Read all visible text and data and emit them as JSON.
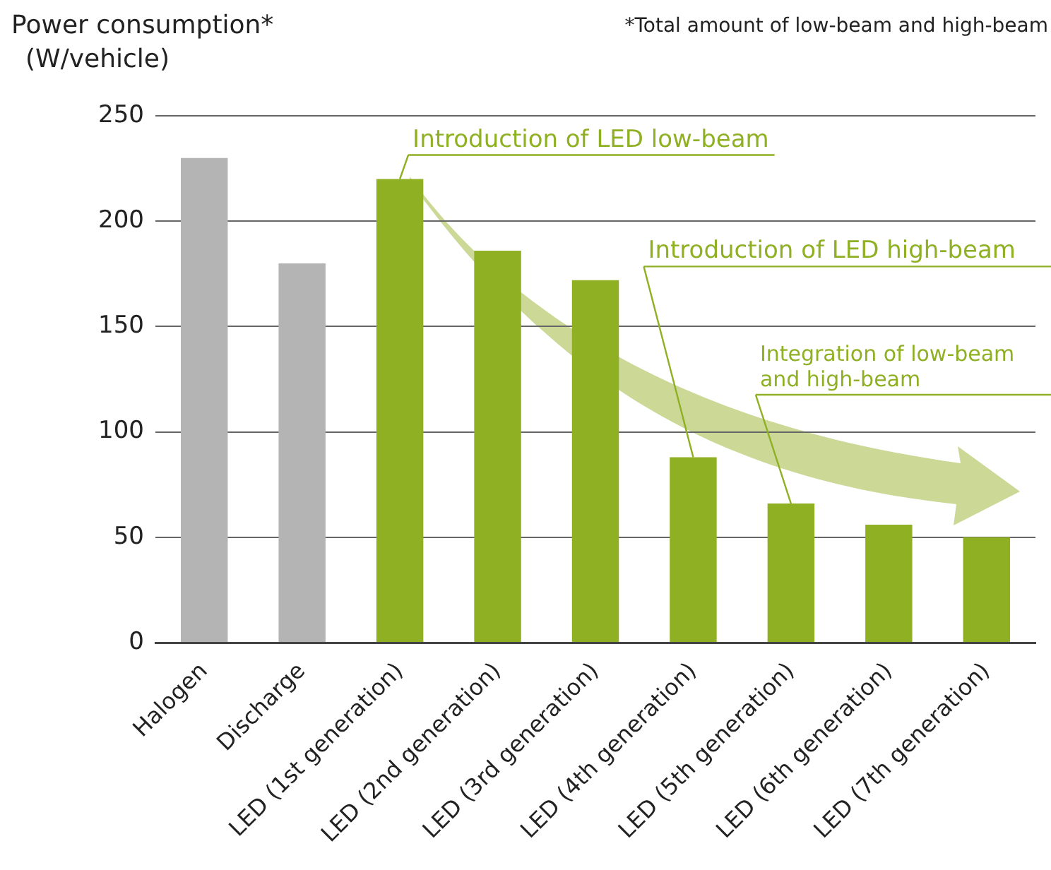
{
  "chart_data": {
    "type": "bar",
    "ylabel": "Power consumption* (W/vehicle)",
    "categories": [
      "Halogen",
      "Discharge",
      "LED (1st generation)",
      "LED (2nd generation)",
      "LED (3rd generation)",
      "LED (4th generation)",
      "LED (5th generation)",
      "LED (6th generation)",
      "LED (7th generation)"
    ],
    "values": [
      230,
      180,
      220,
      186,
      172,
      88,
      66,
      56,
      50
    ],
    "colors": [
      "#b3b4b3",
      "#b3b4b3",
      "#8fb023",
      "#8fb023",
      "#8fb023",
      "#8fb023",
      "#8fb023",
      "#8fb023",
      "#8fb023"
    ],
    "ylim": [
      0,
      250
    ],
    "yticks": [
      0,
      50,
      100,
      150,
      200,
      250
    ],
    "grid": "y",
    "legend": false,
    "annotations": [
      "*Total amount of low-beam and high-beam",
      {
        "text": "Introduction of LED low-beam",
        "x": "LED (1st generation)",
        "y": 220
      },
      {
        "text": "Introduction of LED high-beam",
        "x": "LED (4th generation)",
        "y": 88
      },
      {
        "text": "Integration of low-beam and high-beam",
        "x": "LED (5th generation)",
        "y": 66
      }
    ]
  }
}
